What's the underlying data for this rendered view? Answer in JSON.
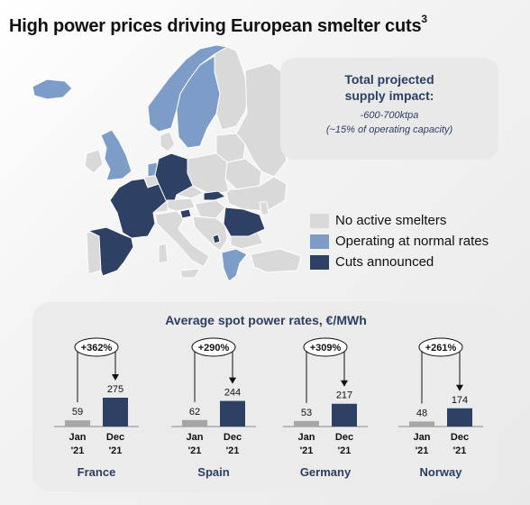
{
  "title": {
    "text": "High power prices driving European smelter cuts",
    "superscript": "3"
  },
  "impact": {
    "title_line1": "Total projected",
    "title_line2": "supply impact:",
    "value": "-600-700ktpa",
    "note": "(~15% of operating capacity)"
  },
  "colors": {
    "no_smelters": "#d9d9d9",
    "normal": "#7d9cc8",
    "cuts": "#2d4164",
    "jan_bar": "#a6a6a6",
    "dec_bar": "#2d4164",
    "accent_text": "#2b3e62"
  },
  "legend": [
    {
      "label": "No active smelters",
      "color": "#d9d9d9"
    },
    {
      "label": "Operating at normal rates",
      "color": "#7d9cc8"
    },
    {
      "label": "Cuts announced",
      "color": "#2d4164"
    }
  ],
  "map_regions": [
    {
      "name": "Iceland",
      "status": "normal"
    },
    {
      "name": "Norway",
      "status": "normal"
    },
    {
      "name": "Sweden",
      "status": "normal"
    },
    {
      "name": "Finland",
      "status": "none"
    },
    {
      "name": "United Kingdom",
      "status": "normal"
    },
    {
      "name": "Ireland",
      "status": "none"
    },
    {
      "name": "France",
      "status": "cuts"
    },
    {
      "name": "Spain",
      "status": "cuts"
    },
    {
      "name": "Portugal",
      "status": "none"
    },
    {
      "name": "Germany",
      "status": "cuts"
    },
    {
      "name": "Netherlands",
      "status": "normal"
    },
    {
      "name": "Slovakia",
      "status": "cuts"
    },
    {
      "name": "Slovenia",
      "status": "cuts"
    },
    {
      "name": "Romania",
      "status": "cuts"
    },
    {
      "name": "Montenegro",
      "status": "cuts"
    },
    {
      "name": "Greece",
      "status": "normal"
    },
    {
      "name": "Italy",
      "status": "none"
    },
    {
      "name": "Poland",
      "status": "none"
    }
  ],
  "rates": {
    "title": "Average spot power rates, €/MWh",
    "chart_data": {
      "type": "bar",
      "title": "Average spot power rates, €/MWh",
      "tick_labels": {
        "jan": [
          "Jan",
          "'21"
        ],
        "dec": [
          "Dec",
          "'21"
        ]
      },
      "groups": [
        {
          "country": "France",
          "jan": 59,
          "dec": 275,
          "change": "+362%"
        },
        {
          "country": "Spain",
          "jan": 62,
          "dec": 244,
          "change": "+290%"
        },
        {
          "country": "Germany",
          "jan": 53,
          "dec": 217,
          "change": "+309%"
        },
        {
          "country": "Norway",
          "jan": 48,
          "dec": 174,
          "change": "+261%"
        }
      ]
    }
  }
}
